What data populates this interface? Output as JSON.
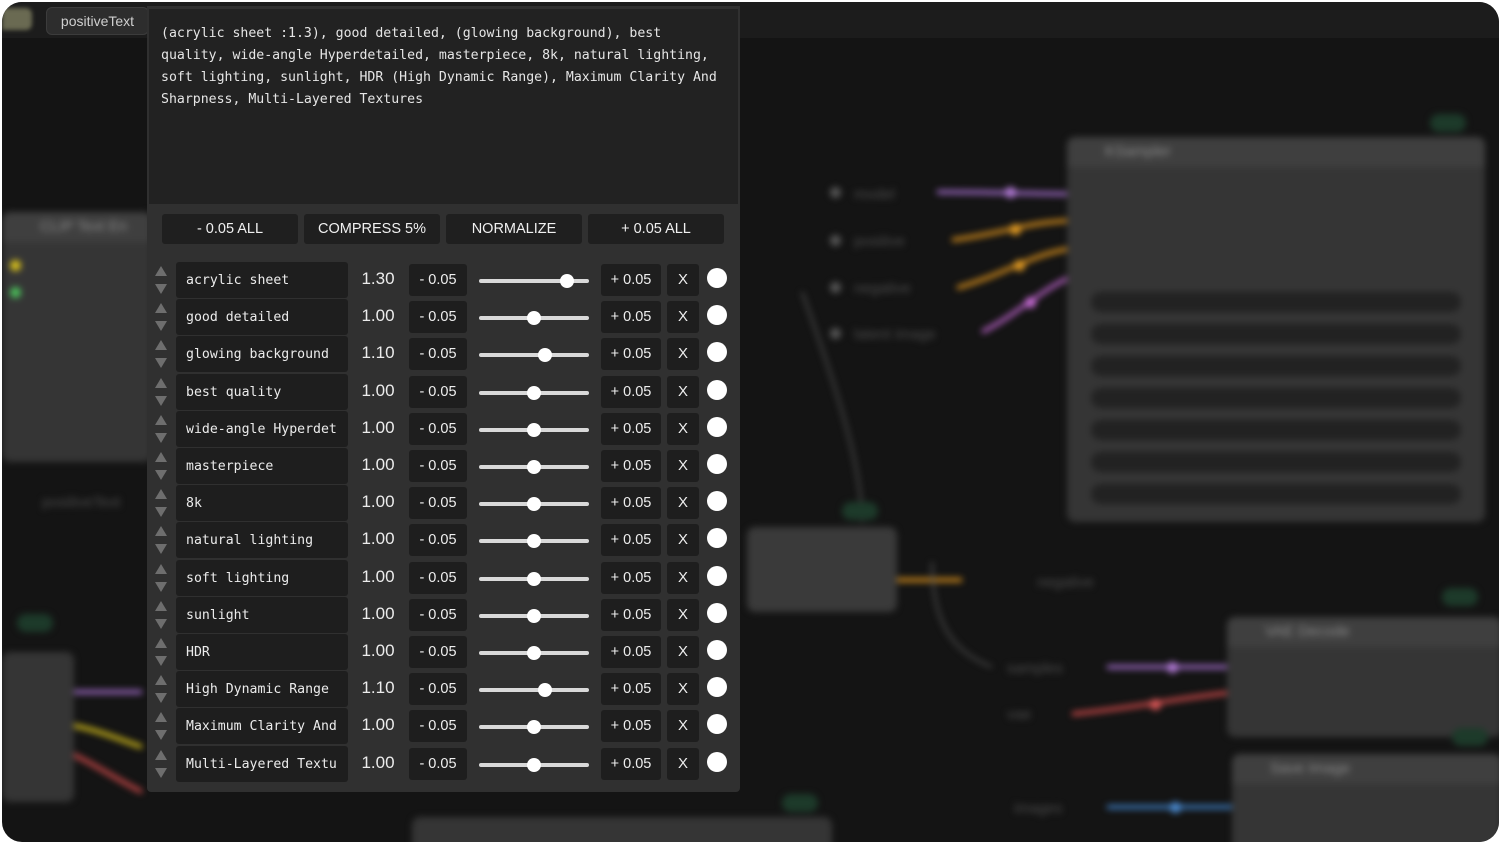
{
  "window": {
    "node_tab_label": "positiveText"
  },
  "prompt_text": "(acrylic sheet :1.3), good detailed, (glowing background), best quality, wide-angle Hyperdetailed, masterpiece, 8k, natural lighting, soft lighting, sunlight, HDR (High Dynamic Range), Maximum Clarity And Sharpness, Multi-Layered Textures",
  "actions": {
    "minus_all": "- 0.05 ALL",
    "compress": "COMPRESS 5%",
    "normalize": "NORMALIZE",
    "plus_all": "+ 0.05 ALL"
  },
  "controls": {
    "minus_label": "- 0.05",
    "plus_label": "+ 0.05",
    "remove_label": "X"
  },
  "slider_range": [
    0.5,
    1.5
  ],
  "tokens": [
    {
      "name": "acrylic sheet",
      "weight": "1.30",
      "value": 1.3
    },
    {
      "name": "good detailed",
      "weight": "1.00",
      "value": 1.0
    },
    {
      "name": "glowing background",
      "weight": "1.10",
      "value": 1.1
    },
    {
      "name": "best quality",
      "weight": "1.00",
      "value": 1.0
    },
    {
      "name": "wide-angle Hyperdet",
      "weight": "1.00",
      "value": 1.0
    },
    {
      "name": "masterpiece",
      "weight": "1.00",
      "value": 1.0
    },
    {
      "name": "8k",
      "weight": "1.00",
      "value": 1.0
    },
    {
      "name": "natural lighting",
      "weight": "1.00",
      "value": 1.0
    },
    {
      "name": "soft lighting",
      "weight": "1.00",
      "value": 1.0
    },
    {
      "name": "sunlight",
      "weight": "1.00",
      "value": 1.0
    },
    {
      "name": "HDR",
      "weight": "1.00",
      "value": 1.0
    },
    {
      "name": "High Dynamic Range",
      "weight": "1.10",
      "value": 1.1
    },
    {
      "name": "Maximum Clarity And",
      "weight": "1.00",
      "value": 1.0
    },
    {
      "name": "Multi-Layered Textu",
      "weight": "1.00",
      "value": 1.0
    }
  ],
  "colors": {
    "panel": "#303030",
    "field": "#1e1e1e",
    "text": "#ececec"
  }
}
